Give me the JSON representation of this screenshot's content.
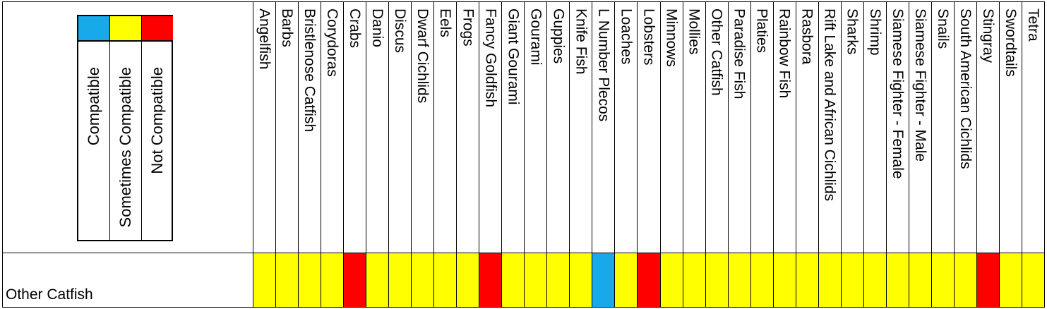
{
  "colors": {
    "compatible": "#17a9ea",
    "sometimes": "#ffff00",
    "not": "#ff0000"
  },
  "legend": {
    "not_compatible": "Not Compatible",
    "sometimes_compatible": "Sometimes Compatible",
    "compatible": "Compatible"
  },
  "row_label": "Other Catfish",
  "columns": [
    {
      "name": "Angelfish",
      "status": "sometimes"
    },
    {
      "name": "Barbs",
      "status": "sometimes"
    },
    {
      "name": "Bristlenose Catfish",
      "status": "sometimes"
    },
    {
      "name": "Corydoras",
      "status": "sometimes"
    },
    {
      "name": "Crabs",
      "status": "not"
    },
    {
      "name": "Danio",
      "status": "sometimes"
    },
    {
      "name": "Discus",
      "status": "sometimes"
    },
    {
      "name": "Dwarf Cichlids",
      "status": "sometimes"
    },
    {
      "name": "Eels",
      "status": "sometimes"
    },
    {
      "name": "Frogs",
      "status": "sometimes"
    },
    {
      "name": "Fancy Goldfish",
      "status": "not"
    },
    {
      "name": "Giant Gourami",
      "status": "sometimes"
    },
    {
      "name": "Gourami",
      "status": "sometimes"
    },
    {
      "name": "Guppies",
      "status": "sometimes"
    },
    {
      "name": "Knife Fish",
      "status": "sometimes"
    },
    {
      "name": "L Number Plecos",
      "status": "compatible"
    },
    {
      "name": "Loaches",
      "status": "sometimes"
    },
    {
      "name": "Lobsters",
      "status": "not"
    },
    {
      "name": "Minnows",
      "status": "sometimes"
    },
    {
      "name": "Mollies",
      "status": "sometimes"
    },
    {
      "name": "Other Catfish",
      "status": "sometimes"
    },
    {
      "name": "Paradise Fish",
      "status": "sometimes"
    },
    {
      "name": "Platies",
      "status": "sometimes"
    },
    {
      "name": "Rainbow Fish",
      "status": "sometimes"
    },
    {
      "name": "Rasbora",
      "status": "sometimes"
    },
    {
      "name": "Rift Lake and African Cichlids",
      "status": "sometimes"
    },
    {
      "name": "Sharks",
      "status": "sometimes"
    },
    {
      "name": "Shrimp",
      "status": "sometimes"
    },
    {
      "name": "Siamese Fighter - Female",
      "status": "sometimes"
    },
    {
      "name": "Siamese Fighter - Male",
      "status": "sometimes"
    },
    {
      "name": "Snails",
      "status": "sometimes"
    },
    {
      "name": "South American Cichlids",
      "status": "sometimes"
    },
    {
      "name": "Stingray",
      "status": "not"
    },
    {
      "name": "Swordtails",
      "status": "sometimes"
    },
    {
      "name": "Tetra",
      "status": "sometimes"
    }
  ]
}
